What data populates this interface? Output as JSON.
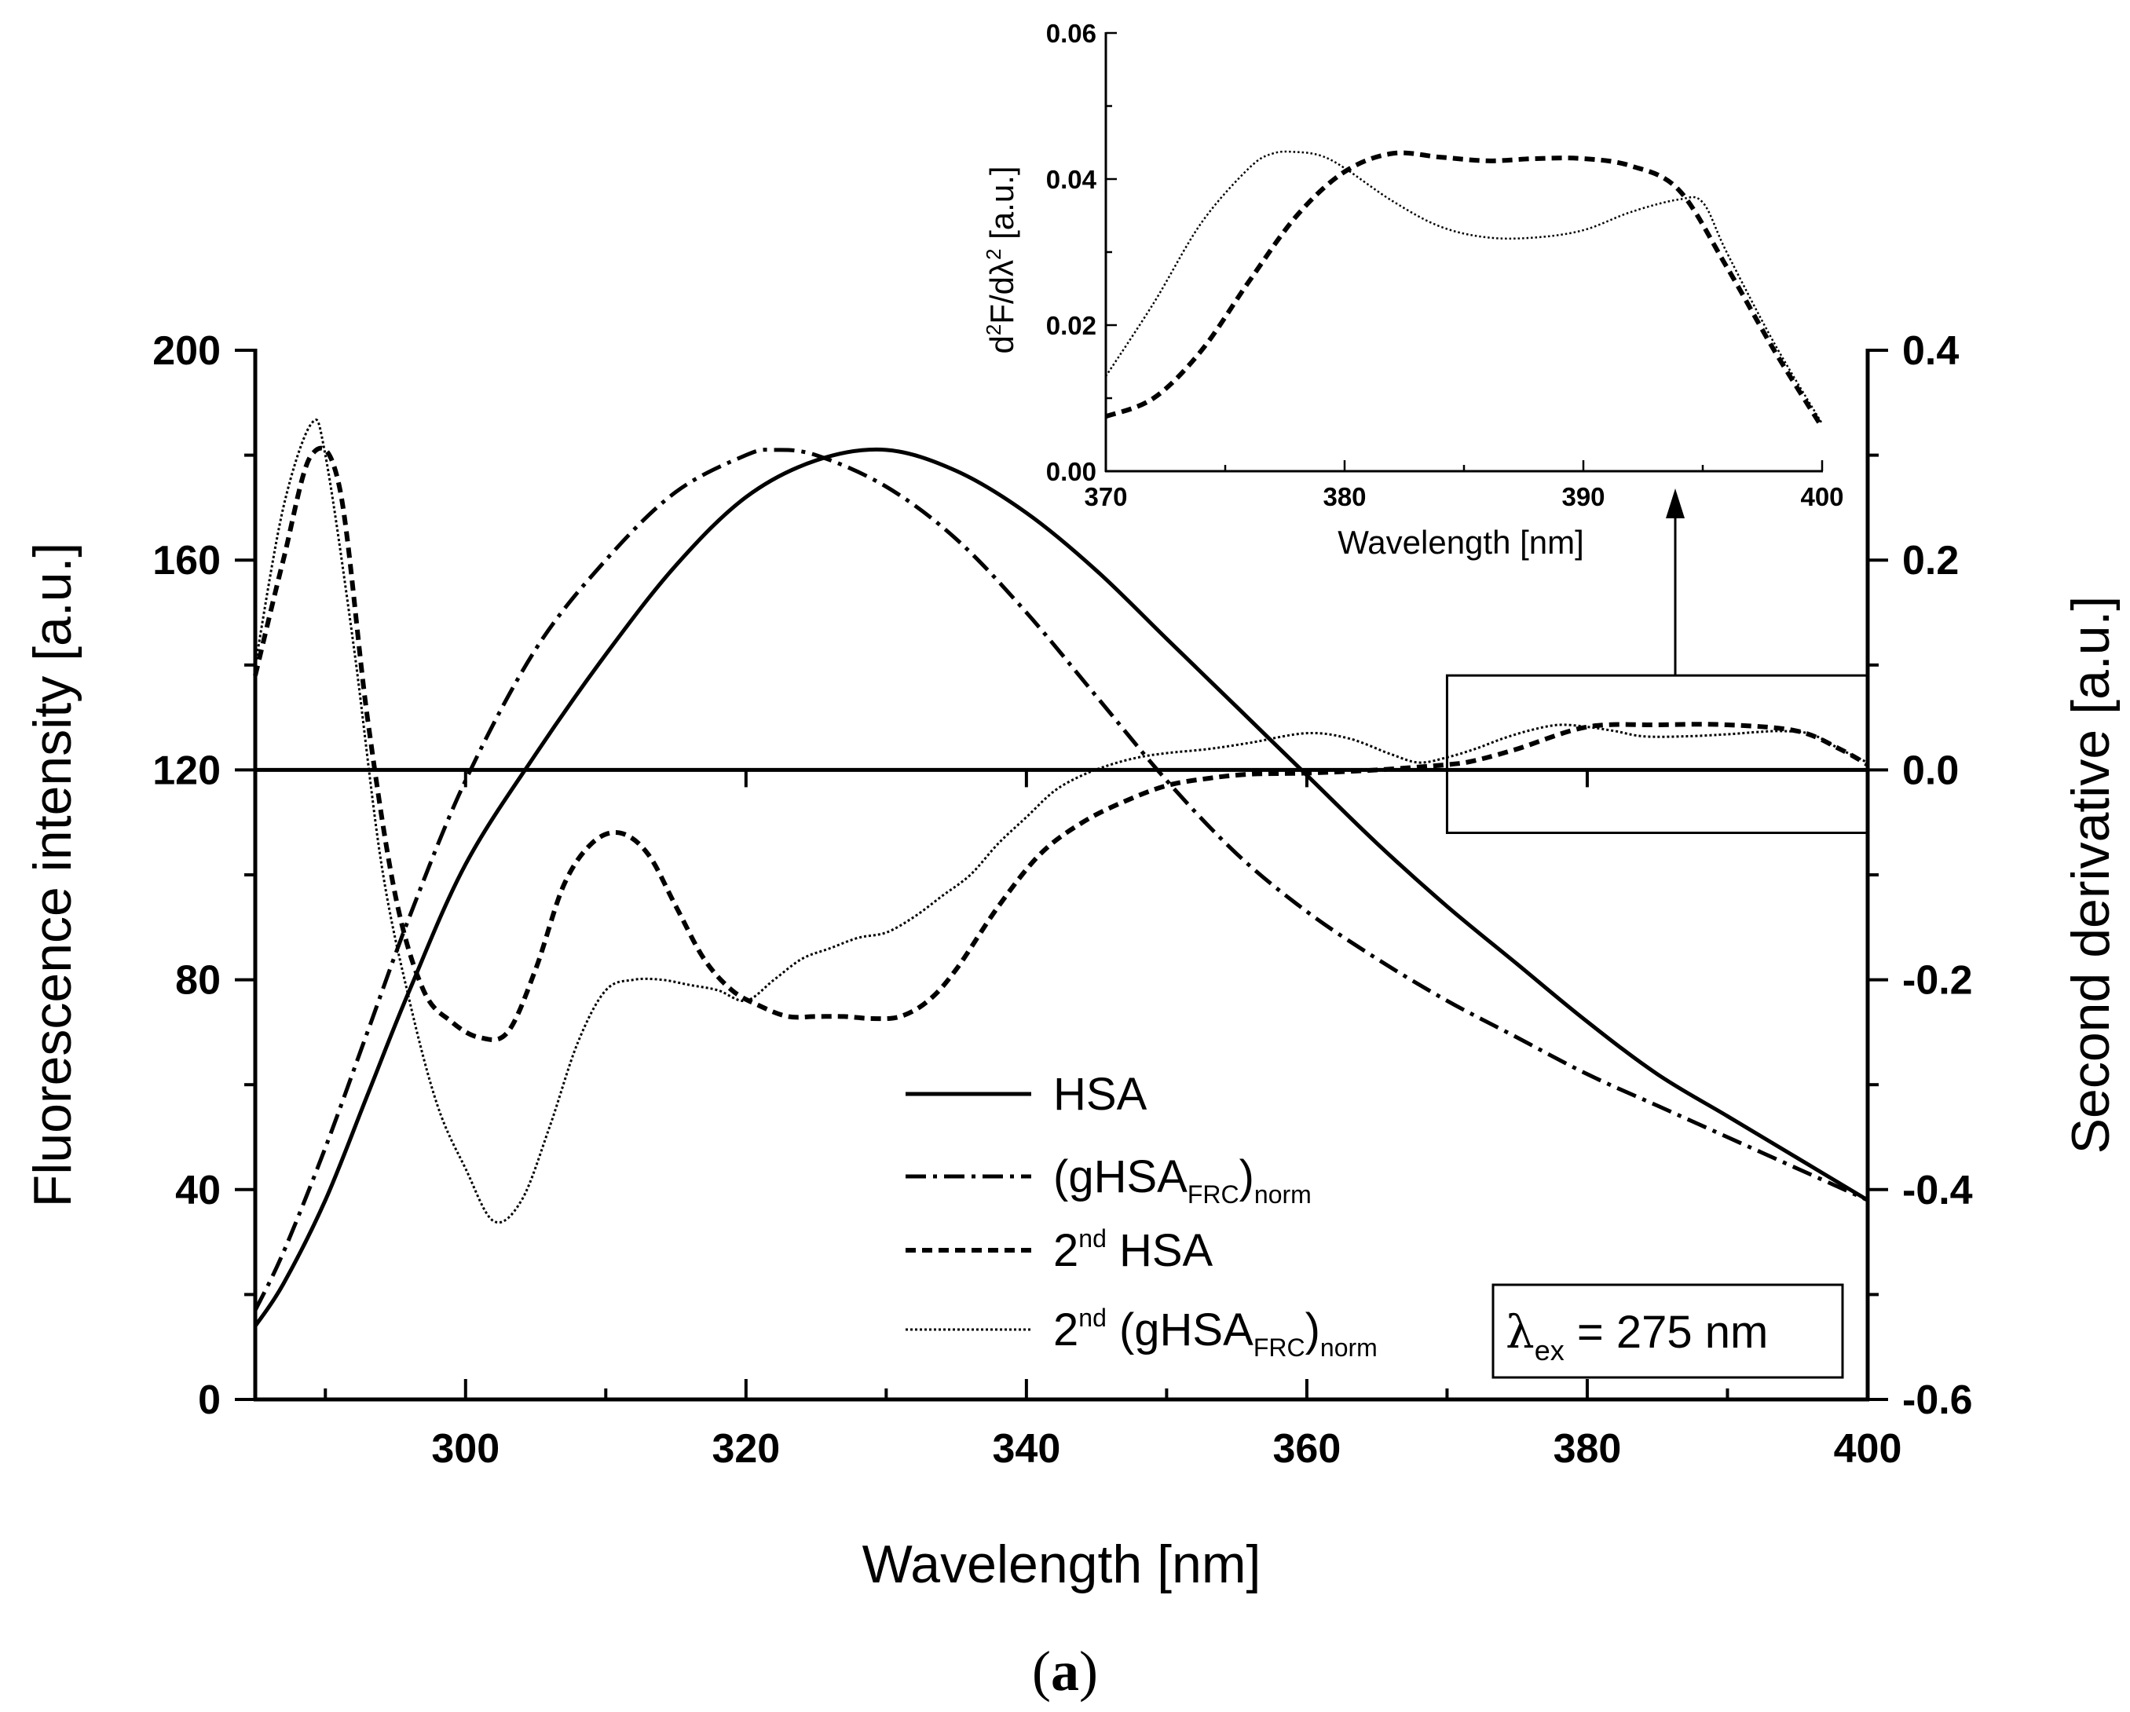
{
  "chart_data": [
    {
      "type": "line",
      "title": "",
      "xlabel": "Wavelength [nm]",
      "ylabel": "Fluorescence intensity [a.u.]",
      "y2label": "Second derivative [a.u.]",
      "xlim": [
        285,
        400
      ],
      "ylim": [
        0,
        200
      ],
      "y2lim": [
        -0.6,
        0.4
      ],
      "xticks": [
        300,
        320,
        340,
        360,
        380,
        400
      ],
      "yticks": [
        0,
        40,
        80,
        120,
        160,
        200
      ],
      "y2ticks": [
        -0.6,
        -0.4,
        -0.2,
        0.0,
        0.2,
        0.4
      ],
      "xtick_labels": [
        "300",
        "320",
        "340",
        "360",
        "380",
        "400"
      ],
      "ytick_labels": [
        "0",
        "40",
        "80",
        "120",
        "160",
        "200"
      ],
      "y2tick_labels": [
        "-0.6",
        "-0.4",
        "-0.2",
        "0.0",
        "0.2",
        "0.4"
      ],
      "series": [
        {
          "name": "HSA",
          "axis": "left",
          "style": "solid",
          "x": [
            285,
            287,
            290,
            293,
            296,
            300,
            305,
            310,
            315,
            320,
            325,
            330,
            335,
            340,
            345,
            350,
            355,
            360,
            365,
            370,
            375,
            380,
            385,
            390,
            395,
            400
          ],
          "y": [
            14,
            22,
            38,
            58,
            78,
            102,
            123,
            142,
            159,
            172,
            179,
            181,
            177,
            169,
            158,
            145,
            132,
            119,
            106,
            94,
            83,
            72,
            62,
            54,
            46,
            38
          ]
        },
        {
          "name": "(gHSA_FRC)_norm",
          "axis": "left",
          "style": "dash-dot",
          "x": [
            285,
            287,
            290,
            293,
            296,
            300,
            305,
            310,
            315,
            320,
            322,
            325,
            330,
            335,
            340,
            345,
            350,
            355,
            360,
            365,
            370,
            375,
            380,
            385,
            390,
            395,
            400
          ],
          "y": [
            17,
            28,
            48,
            70,
            92,
            118,
            143,
            160,
            173,
            180,
            181,
            180,
            174,
            164,
            150,
            134,
            118,
            104,
            93,
            84,
            76,
            69,
            62,
            56,
            50,
            44,
            38
          ]
        },
        {
          "name": "2nd HSA",
          "axis": "right",
          "style": "dashed",
          "x": [
            285,
            287,
            289,
            291,
            293,
            295,
            297,
            299,
            301,
            303,
            305,
            307,
            309,
            311,
            313,
            315,
            317,
            319,
            321,
            323,
            325,
            327,
            329,
            331,
            333,
            335,
            338,
            341,
            344,
            347,
            350,
            353,
            356,
            360,
            365,
            370,
            372,
            375,
            380,
            385,
            390,
            395,
            398,
            400
          ],
          "y": [
            0.09,
            0.2,
            0.3,
            0.27,
            0.05,
            -0.12,
            -0.21,
            -0.24,
            -0.255,
            -0.25,
            -0.19,
            -0.11,
            -0.07,
            -0.06,
            -0.08,
            -0.13,
            -0.18,
            -0.21,
            -0.225,
            -0.235,
            -0.235,
            -0.235,
            -0.237,
            -0.235,
            -0.22,
            -0.19,
            -0.13,
            -0.08,
            -0.05,
            -0.03,
            -0.015,
            -0.008,
            -0.004,
            -0.003,
            0.0,
            0.005,
            0.009,
            0.02,
            0.041,
            0.043,
            0.043,
            0.037,
            0.02,
            0.005
          ]
        },
        {
          "name": "2nd (gHSA_FRC)_norm",
          "axis": "right",
          "style": "dotted",
          "x": [
            285,
            287,
            289,
            290,
            292,
            294,
            296,
            298,
            300,
            302,
            304,
            306,
            308,
            310,
            312,
            314,
            316,
            318,
            320,
            322,
            324,
            326,
            328,
            330,
            332,
            334,
            336,
            338,
            340,
            342,
            344,
            346,
            348,
            350,
            353,
            356,
            360,
            363,
            366,
            368,
            370,
            372,
            374,
            376,
            378,
            380,
            382,
            384,
            387,
            390,
            392,
            394,
            396,
            398,
            400
          ],
          "y": [
            0.1,
            0.25,
            0.33,
            0.3,
            0.12,
            -0.09,
            -0.22,
            -0.32,
            -0.38,
            -0.43,
            -0.41,
            -0.34,
            -0.26,
            -0.21,
            -0.2,
            -0.2,
            -0.205,
            -0.21,
            -0.22,
            -0.2,
            -0.18,
            -0.17,
            -0.16,
            -0.155,
            -0.14,
            -0.12,
            -0.1,
            -0.07,
            -0.045,
            -0.02,
            -0.005,
            0.005,
            0.012,
            0.016,
            0.02,
            0.026,
            0.035,
            0.03,
            0.015,
            0.007,
            0.012,
            0.02,
            0.03,
            0.038,
            0.043,
            0.041,
            0.037,
            0.032,
            0.032,
            0.034,
            0.036,
            0.037,
            0.034,
            0.02,
            0.007
          ]
        }
      ],
      "legend": {
        "position": "bottom-center",
        "entries": [
          {
            "label": "HSA",
            "style": "solid"
          },
          {
            "main": "(gHSA",
            "sub1": "FRC",
            "mid": ")",
            "sub2": "norm",
            "style": "dash-dot"
          },
          {
            "sup": "nd",
            "pre": "2",
            "rest": " HSA",
            "style": "dashed"
          },
          {
            "pre": "2",
            "sup": "nd",
            "main": " (gHSA",
            "sub1": "FRC",
            "mid": ")",
            "sub2": "norm",
            "style": "dotted"
          }
        ]
      },
      "annotation": {
        "symbol": "λ",
        "sub": "ex",
        "text": " = 275 nm",
        "position": "bottom-right"
      },
      "zoom_box": {
        "x": [
          370,
          400
        ],
        "y2": [
          -0.06,
          0.09
        ],
        "label": "region magnified in inset"
      }
    },
    {
      "type": "line",
      "name": "inset",
      "xlabel": "Wavelength [nm]",
      "ylabel": "d2F/dλ2 [a.u.]",
      "ylabel_parts": {
        "d": "d",
        "sup1": "2",
        "mid": "F/dλ",
        "sup2": "2",
        "end": " [a.u.]"
      },
      "xlim": [
        370,
        400
      ],
      "ylim": [
        0,
        0.06
      ],
      "xticks": [
        370,
        380,
        390,
        400
      ],
      "yticks": [
        0.0,
        0.02,
        0.04,
        0.06
      ],
      "xtick_labels": [
        "370",
        "380",
        "390",
        "400"
      ],
      "ytick_labels": [
        "0.00",
        "0.02",
        "0.04",
        "0.06"
      ],
      "series": [
        {
          "name": "2nd HSA",
          "style": "dashed",
          "x": [
            370,
            372,
            374,
            376,
            378,
            380,
            382,
            384,
            386,
            388,
            390,
            392,
            394,
            396,
            398,
            400
          ],
          "y": [
            0.0075,
            0.01,
            0.0165,
            0.026,
            0.035,
            0.041,
            0.0435,
            0.043,
            0.0425,
            0.0428,
            0.0428,
            0.0418,
            0.0385,
            0.028,
            0.0165,
            0.006
          ]
        },
        {
          "name": "2nd (gHSA_FRC)_norm",
          "style": "dotted",
          "x": [
            370,
            372,
            374,
            376,
            377,
            378,
            379,
            380,
            382,
            384,
            386,
            388,
            390,
            392,
            394,
            395,
            396,
            398,
            400
          ],
          "y": [
            0.013,
            0.023,
            0.034,
            0.0415,
            0.0435,
            0.0437,
            0.0432,
            0.0415,
            0.037,
            0.0335,
            0.032,
            0.032,
            0.033,
            0.0355,
            0.0372,
            0.0368,
            0.03,
            0.0175,
            0.0065
          ]
        }
      ]
    }
  ],
  "caption": {
    "open": "(",
    "letter": "a",
    "close": ")"
  }
}
